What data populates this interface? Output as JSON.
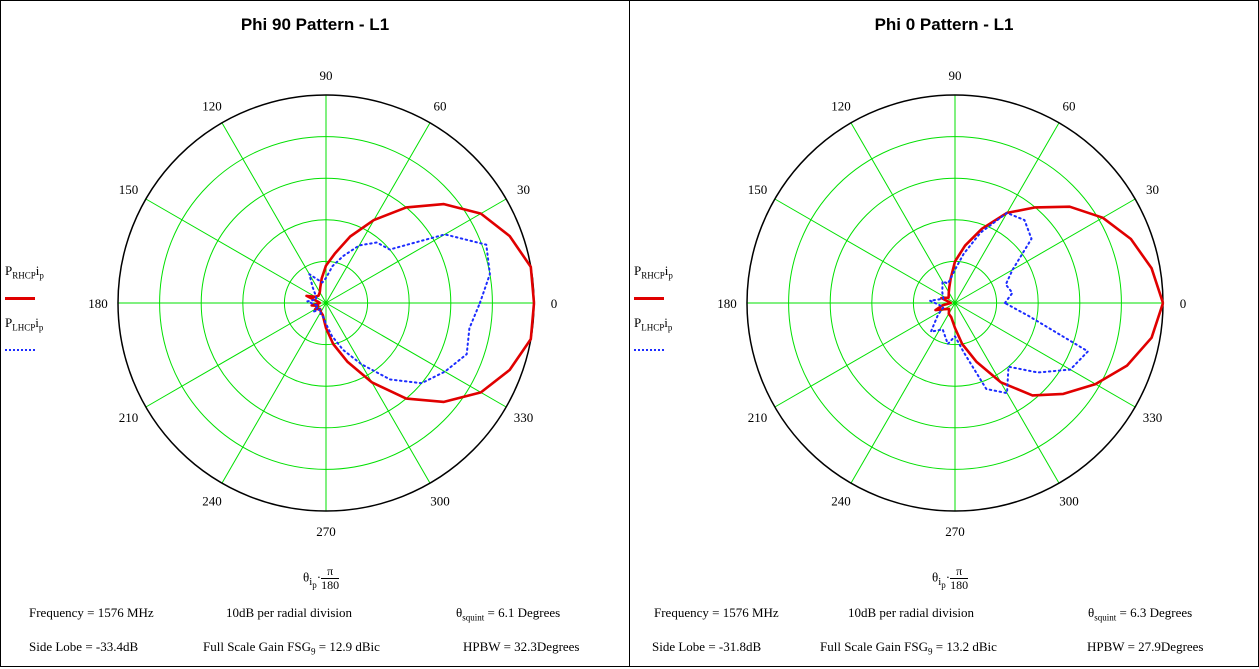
{
  "panels": [
    {
      "title": "Phi 90 Pattern - L1",
      "legend": {
        "rhcp": {
          "base": "P",
          "sub": "RHCP",
          "idx": "i",
          "idx_sub": "p"
        },
        "lhcp": {
          "base": "P",
          "sub": "LHCP",
          "idx": "i",
          "idx_sub": "p"
        }
      },
      "xlabel": {
        "theta": "θ",
        "idx": "i",
        "idx_sub": "p",
        "dot": "·",
        "num": "π",
        "den": "180"
      },
      "info": {
        "freq_label": "Frequency = 1576  MHz",
        "scale_label": "10dB per radial division",
        "squint_theta": "θ",
        "squint_sub": "squint",
        "squint_rest": " = 6.1  Degrees",
        "sidelobe": "Side Lobe = -33.4dB",
        "fsg_text": "Full Scale Gain   FSG",
        "fsg_sub": "9",
        "fsg_rest": " = 12.9  dBic",
        "hpbw": "HPBW = 32.3Degrees"
      }
    },
    {
      "title": "Phi 0 Pattern - L1",
      "legend": {
        "rhcp": {
          "base": "P",
          "sub": "RHCP",
          "idx": "i",
          "idx_sub": "p"
        },
        "lhcp": {
          "base": "P",
          "sub": "LHCP",
          "idx": "i",
          "idx_sub": "p"
        }
      },
      "xlabel": {
        "theta": "θ",
        "idx": "i",
        "idx_sub": "p",
        "dot": "·",
        "num": "π",
        "den": "180"
      },
      "info": {
        "freq_label": "Frequency = 1576  MHz",
        "scale_label": "10dB per radial division",
        "squint_theta": "θ",
        "squint_sub": "squint",
        "squint_rest": " = 6.3  Degrees",
        "sidelobe": "Side Lobe = -31.8dB",
        "fsg_text": "Full Scale Gain   FSG",
        "fsg_sub": "9",
        "fsg_rest": " = 13.2  dBic",
        "hpbw": "HPBW = 27.9Degrees"
      }
    }
  ],
  "chart_data": [
    {
      "type": "polar",
      "title": "Phi 90 Pattern - L1",
      "angle_ticks": [
        "0",
        "30",
        "60",
        "90",
        "120",
        "150",
        "180",
        "210",
        "240",
        "270",
        "300",
        "330"
      ],
      "radial_divisions": 5,
      "radial_division_db": 10,
      "r_max": 5,
      "colors": {
        "grid": "#00e000",
        "rhcp": "#e00000",
        "lhcp": "#1c2cff",
        "frame": "#000000"
      },
      "series": [
        {
          "name": "P_RHCP",
          "style": "solid",
          "points": [
            [
              0,
              5.0
            ],
            [
              10,
              5.0
            ],
            [
              20,
              4.7
            ],
            [
              30,
              4.3
            ],
            [
              40,
              3.7
            ],
            [
              50,
              3.0
            ],
            [
              60,
              2.3
            ],
            [
              70,
              1.7
            ],
            [
              80,
              1.2
            ],
            [
              90,
              0.9
            ],
            [
              100,
              0.6
            ],
            [
              110,
              0.4
            ],
            [
              120,
              0.3
            ],
            [
              135,
              0.25
            ],
            [
              150,
              0.3
            ],
            [
              160,
              0.5
            ],
            [
              170,
              0.2
            ],
            [
              180,
              0.15
            ],
            [
              190,
              0.35
            ],
            [
              200,
              0.2
            ],
            [
              210,
              0.3
            ],
            [
              225,
              0.2
            ],
            [
              240,
              0.25
            ],
            [
              255,
              0.3
            ],
            [
              270,
              0.6
            ],
            [
              280,
              1.0
            ],
            [
              290,
              1.5
            ],
            [
              300,
              2.2
            ],
            [
              310,
              3.0
            ],
            [
              320,
              3.7
            ],
            [
              330,
              4.3
            ],
            [
              340,
              4.7
            ],
            [
              350,
              5.0
            ],
            [
              360,
              5.0
            ]
          ]
        },
        {
          "name": "P_LHCP",
          "style": "dotted",
          "points": [
            [
              0,
              3.7
            ],
            [
              10,
              4.0
            ],
            [
              20,
              4.1
            ],
            [
              30,
              3.3
            ],
            [
              40,
              2.0
            ],
            [
              50,
              1.9
            ],
            [
              60,
              1.6
            ],
            [
              70,
              1.2
            ],
            [
              80,
              0.9
            ],
            [
              90,
              0.6
            ],
            [
              100,
              0.5
            ],
            [
              110,
              0.6
            ],
            [
              120,
              0.8
            ],
            [
              130,
              0.5
            ],
            [
              145,
              0.3
            ],
            [
              160,
              0.25
            ],
            [
              175,
              0.45
            ],
            [
              185,
              0.3
            ],
            [
              200,
              0.2
            ],
            [
              215,
              0.35
            ],
            [
              230,
              0.2
            ],
            [
              245,
              0.3
            ],
            [
              260,
              0.35
            ],
            [
              270,
              0.5
            ],
            [
              280,
              0.8
            ],
            [
              290,
              1.2
            ],
            [
              300,
              1.7
            ],
            [
              310,
              2.4
            ],
            [
              320,
              3.0
            ],
            [
              330,
              3.3
            ],
            [
              340,
              3.6
            ],
            [
              350,
              3.5
            ],
            [
              360,
              3.7
            ]
          ]
        }
      ]
    },
    {
      "type": "polar",
      "title": "Phi 0 Pattern - L1",
      "angle_ticks": [
        "0",
        "30",
        "60",
        "90",
        "120",
        "150",
        "180",
        "210",
        "240",
        "270",
        "300",
        "330"
      ],
      "radial_divisions": 5,
      "radial_division_db": 10,
      "r_max": 5,
      "colors": {
        "grid": "#00e000",
        "rhcp": "#e00000",
        "lhcp": "#1c2cff",
        "frame": "#000000"
      },
      "series": [
        {
          "name": "P_RHCP",
          "style": "solid",
          "points": [
            [
              0,
              5.0
            ],
            [
              10,
              4.8
            ],
            [
              20,
              4.5
            ],
            [
              30,
              4.1
            ],
            [
              40,
              3.6
            ],
            [
              50,
              3.0
            ],
            [
              60,
              2.5
            ],
            [
              70,
              1.9
            ],
            [
              80,
              1.4
            ],
            [
              90,
              1.0
            ],
            [
              100,
              0.6
            ],
            [
              110,
              0.4
            ],
            [
              120,
              0.3
            ],
            [
              140,
              0.2
            ],
            [
              160,
              0.35
            ],
            [
              170,
              0.15
            ],
            [
              180,
              0.1
            ],
            [
              190,
              0.3
            ],
            [
              200,
              0.5
            ],
            [
              210,
              0.3
            ],
            [
              225,
              0.2
            ],
            [
              240,
              0.3
            ],
            [
              255,
              0.35
            ],
            [
              270,
              0.6
            ],
            [
              280,
              1.0
            ],
            [
              290,
              1.5
            ],
            [
              300,
              2.2
            ],
            [
              310,
              2.9
            ],
            [
              320,
              3.4
            ],
            [
              330,
              3.9
            ],
            [
              340,
              4.4
            ],
            [
              350,
              4.8
            ],
            [
              360,
              5.0
            ]
          ]
        },
        {
          "name": "P_LHCP",
          "style": "dotted",
          "points": [
            [
              0,
              1.2
            ],
            [
              10,
              1.4
            ],
            [
              20,
              1.3
            ],
            [
              30,
              1.6
            ],
            [
              40,
              2.4
            ],
            [
              50,
              2.6
            ],
            [
              60,
              2.5
            ],
            [
              70,
              1.8
            ],
            [
              80,
              1.2
            ],
            [
              90,
              0.8
            ],
            [
              100,
              0.6
            ],
            [
              110,
              0.5
            ],
            [
              120,
              0.6
            ],
            [
              140,
              0.4
            ],
            [
              160,
              0.3
            ],
            [
              175,
              0.6
            ],
            [
              185,
              0.4
            ],
            [
              200,
              0.3
            ],
            [
              215,
              0.5
            ],
            [
              230,
              0.9
            ],
            [
              245,
              0.7
            ],
            [
              260,
              1.0
            ],
            [
              270,
              0.8
            ],
            [
              280,
              1.2
            ],
            [
              290,
              2.2
            ],
            [
              300,
              2.5
            ],
            [
              310,
              2.0
            ],
            [
              320,
              2.6
            ],
            [
              330,
              3.2
            ],
            [
              340,
              3.4
            ],
            [
              350,
              1.8
            ],
            [
              360,
              1.2
            ]
          ]
        }
      ]
    }
  ]
}
